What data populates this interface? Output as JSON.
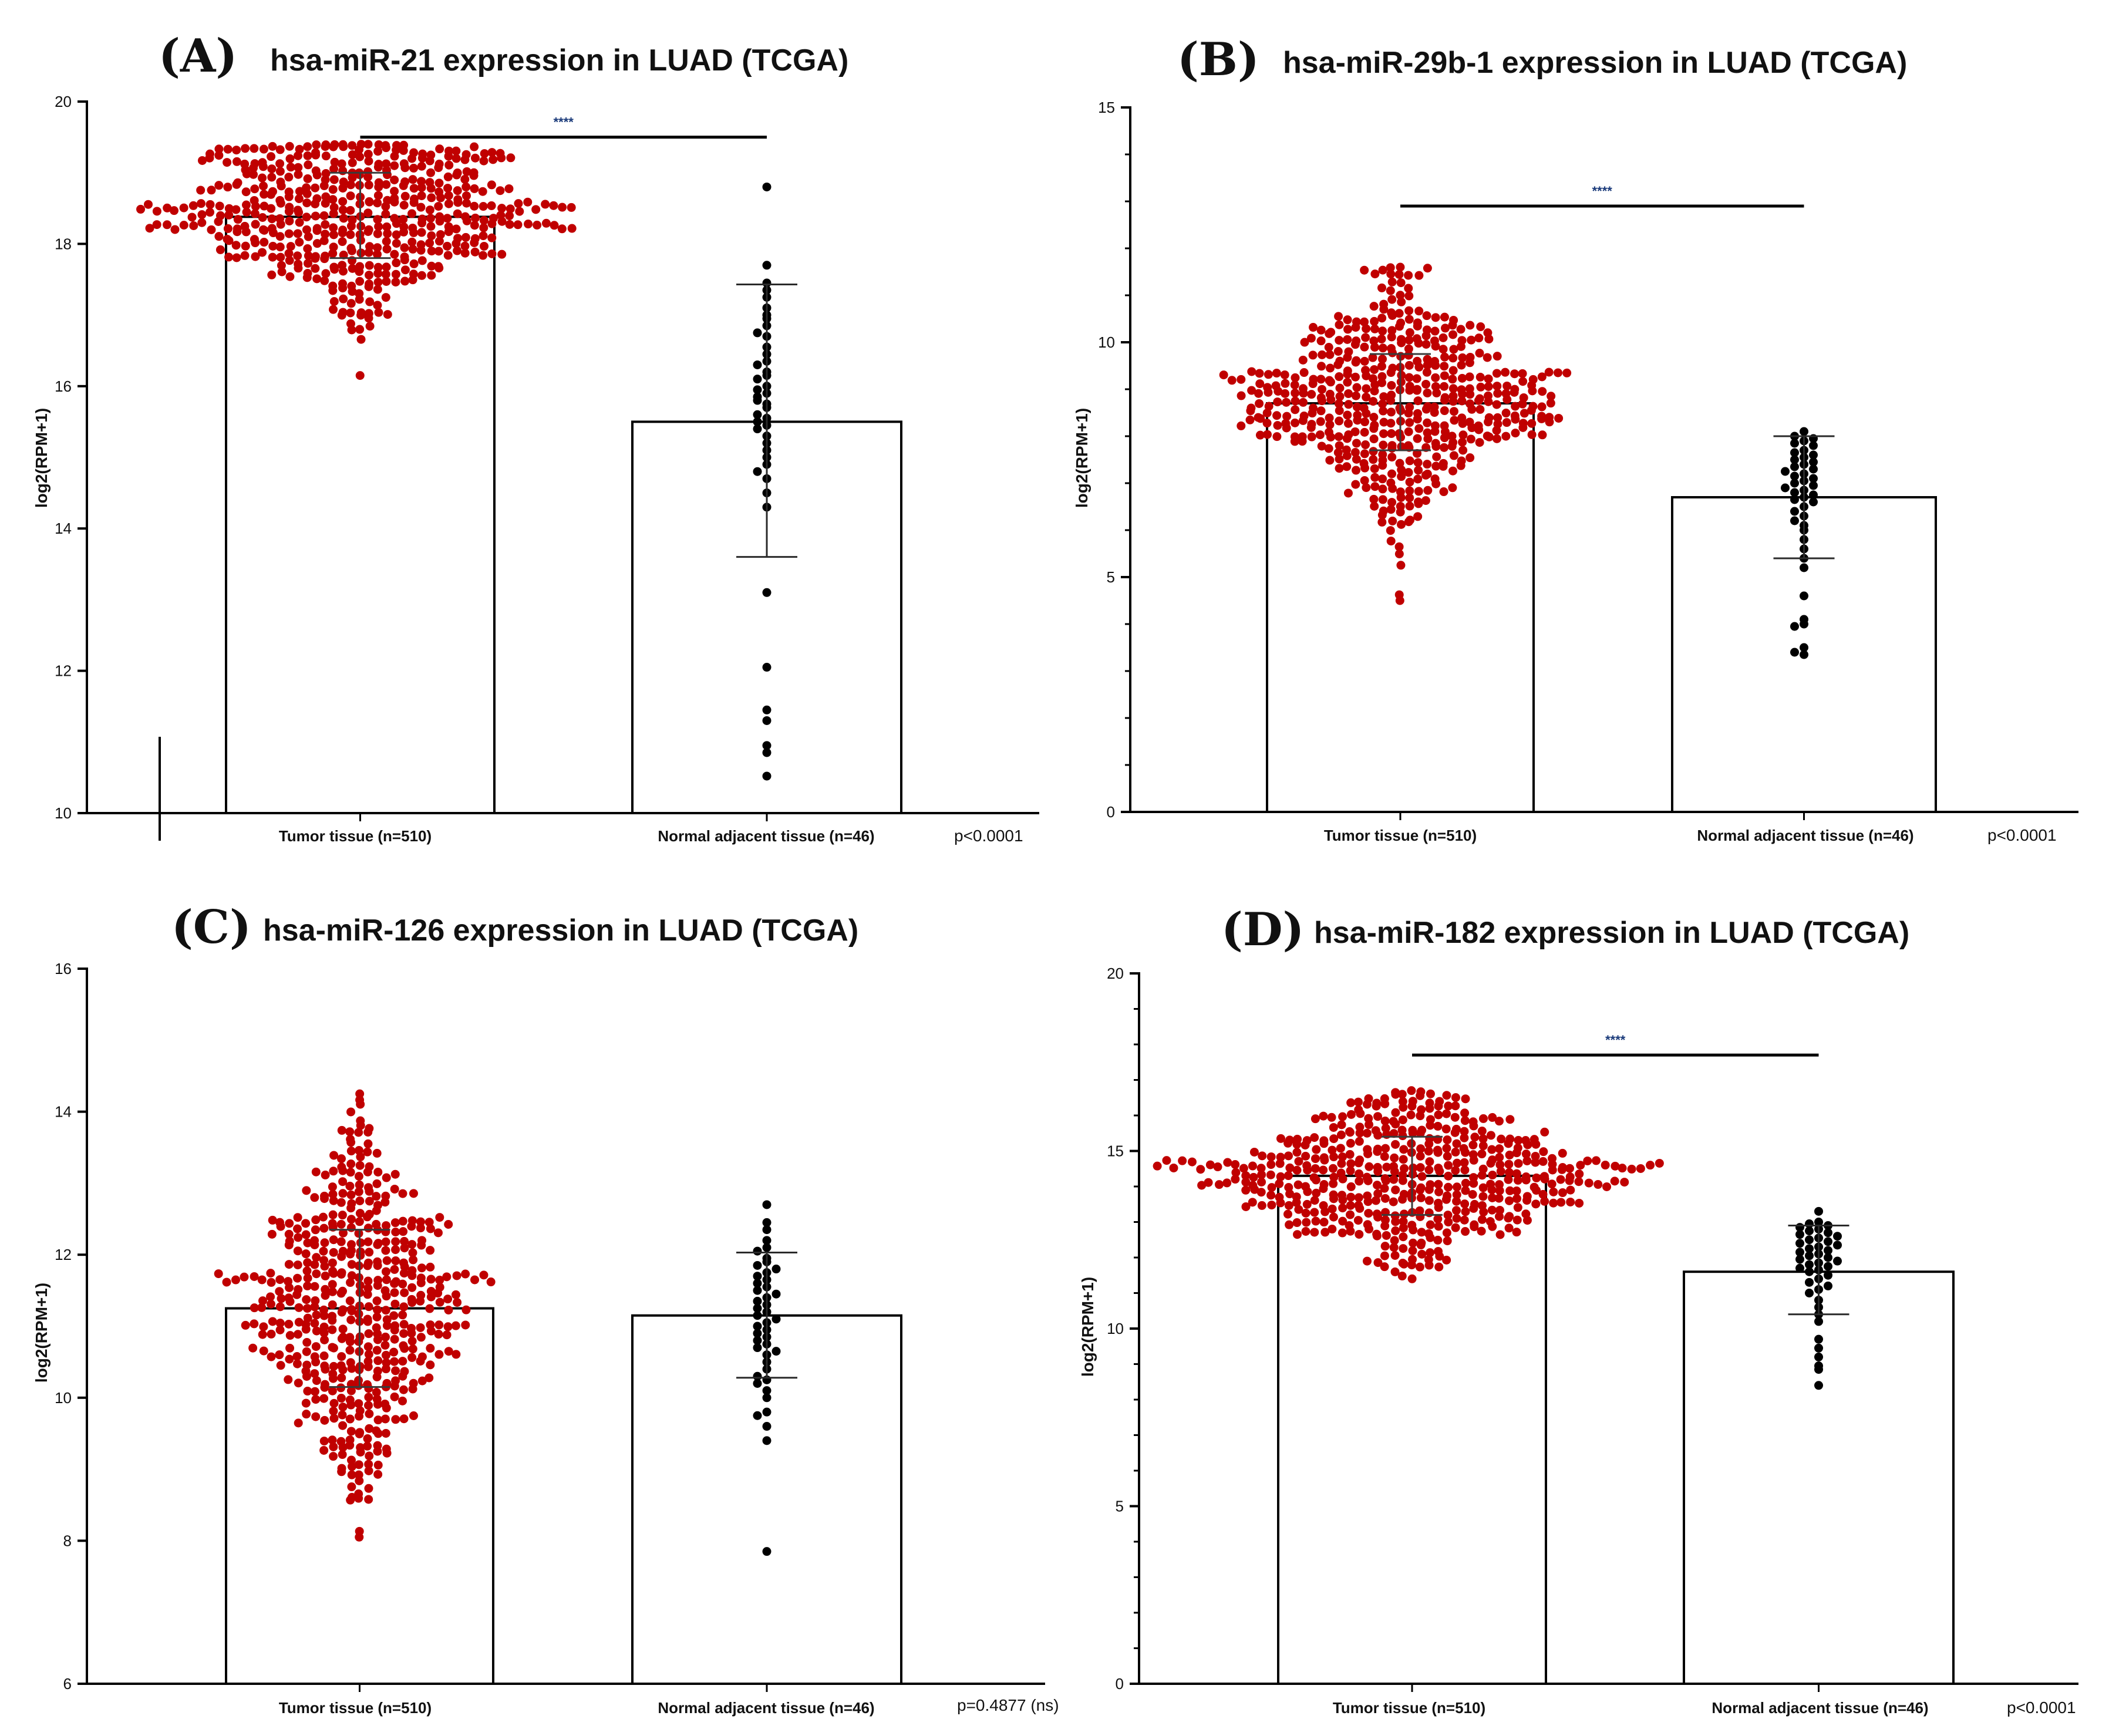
{
  "figure": {
    "colors": {
      "tumor_dots": "#c00000",
      "normal_dots": "#000000",
      "bar_fill": "#ffffff",
      "axis": "#000000",
      "significance_stars": "#1a3a7a"
    }
  },
  "chart_data": [
    {
      "type": "bar",
      "panel_label": "(A)",
      "title": "hsa-miR-21 expression in LUAD (TCGA)",
      "xlabel": "",
      "ylabel": "log2(RPM+1)",
      "ylim": [
        10,
        20
      ],
      "yticks": [
        10,
        12,
        14,
        16,
        18,
        20
      ],
      "yticks_text": [
        "10",
        "12",
        "14",
        "16",
        "18",
        "20"
      ],
      "minor_ticks": 0,
      "categories": [
        "Tumor tissue (n=510)",
        "Normal adjacent tissue (n=46)"
      ],
      "values": [
        18.38,
        15.5
      ],
      "error_low": [
        17.8,
        13.6
      ],
      "error_high": [
        19.0,
        17.43
      ],
      "tumor_points": {
        "n": 510,
        "min": 16.15,
        "max": 19.4,
        "q10": 17.3,
        "q90": 19.0,
        "median": 18.4
      },
      "normal_points": [
        18.8,
        17.7,
        17.45,
        17.35,
        17.25,
        17.1,
        17.0,
        16.95,
        16.85,
        16.75,
        16.7,
        16.55,
        16.45,
        16.35,
        16.2,
        16.15,
        16.1,
        16.0,
        15.95,
        15.9,
        15.85,
        15.75,
        15.7,
        15.6,
        15.55,
        15.5,
        15.45,
        15.4,
        15.3,
        15.2,
        15.1,
        15.0,
        14.9,
        14.8,
        14.7,
        14.5,
        14.3,
        13.1,
        12.05,
        11.45,
        11.3,
        10.95,
        10.85,
        10.52,
        15.8,
        16.3
      ],
      "significance": "****",
      "sig_y": 19.5,
      "p_value_text": "p<0.0001"
    },
    {
      "type": "bar",
      "panel_label": "(B)",
      "title": "hsa-miR-29b-1 expression in LUAD (TCGA)",
      "xlabel": "",
      "ylabel": "log2(RPM+1)",
      "ylim": [
        0,
        15
      ],
      "yticks": [
        0,
        5,
        10,
        15
      ],
      "yticks_text": [
        "0",
        "5",
        "10",
        "15"
      ],
      "minor_ticks": 4,
      "categories": [
        "Tumor tissue (n=510)",
        "Normal adjacent tissue (n=46)"
      ],
      "values": [
        8.7,
        6.7
      ],
      "error_low": [
        7.7,
        5.4
      ],
      "error_high": [
        9.75,
        8.0
      ],
      "tumor_points": {
        "n": 510,
        "min": 4.5,
        "max": 11.6,
        "q10": 7.0,
        "q90": 10.1,
        "median": 8.7
      },
      "normal_points": [
        8.1,
        8.0,
        7.95,
        7.9,
        7.85,
        7.8,
        7.7,
        7.65,
        7.6,
        7.55,
        7.5,
        7.45,
        7.4,
        7.35,
        7.3,
        7.25,
        7.2,
        7.15,
        7.1,
        7.05,
        7.0,
        6.95,
        6.9,
        6.85,
        6.8,
        6.75,
        6.7,
        6.65,
        6.6,
        6.5,
        6.4,
        6.3,
        6.2,
        6.1,
        6.0,
        5.8,
        5.6,
        5.4,
        5.2,
        4.6,
        4.1,
        4.0,
        3.95,
        3.5,
        3.4,
        3.35
      ],
      "significance": "****",
      "sig_y": 12.9,
      "p_value_text": "p<0.0001"
    },
    {
      "type": "bar",
      "panel_label": "(C)",
      "title": "hsa-miR-126 expression in LUAD (TCGA)",
      "xlabel": "",
      "ylabel": "log2(RPM+1)",
      "ylim": [
        6,
        16
      ],
      "yticks": [
        6,
        8,
        10,
        12,
        14,
        16
      ],
      "yticks_text": [
        "6",
        "8",
        "10",
        "12",
        "14",
        "16"
      ],
      "minor_ticks": 0,
      "categories": [
        "Tumor tissue (n=510)",
        "Normal adjacent tissue (n=46)"
      ],
      "values": [
        11.25,
        11.15
      ],
      "error_low": [
        10.15,
        10.28
      ],
      "error_high": [
        12.35,
        12.03
      ],
      "tumor_points": {
        "n": 510,
        "min": 8.05,
        "max": 14.25,
        "q10": 9.8,
        "q90": 12.8,
        "median": 11.2
      },
      "normal_points": [
        12.7,
        12.45,
        12.35,
        12.2,
        12.1,
        12.05,
        11.95,
        11.9,
        11.85,
        11.8,
        11.75,
        11.7,
        11.65,
        11.6,
        11.55,
        11.5,
        11.45,
        11.4,
        11.35,
        11.3,
        11.25,
        11.2,
        11.15,
        11.1,
        11.05,
        11.0,
        10.95,
        10.9,
        10.85,
        10.8,
        10.75,
        10.7,
        10.65,
        10.6,
        10.5,
        10.4,
        10.3,
        10.25,
        10.2,
        10.1,
        10.0,
        9.8,
        9.75,
        9.6,
        9.4,
        7.85
      ],
      "significance": "",
      "sig_y": null,
      "p_value_text": "p=0.4877 (ns)"
    },
    {
      "type": "bar",
      "panel_label": "(D)",
      "title": "hsa-miR-182 expression in LUAD (TCGA)",
      "xlabel": "",
      "ylabel": "log2(RPM+1)",
      "ylim": [
        0,
        20
      ],
      "yticks": [
        0,
        5,
        10,
        15,
        20
      ],
      "yticks_text": [
        "0",
        "5",
        "10",
        "15",
        "20"
      ],
      "minor_ticks": 4,
      "categories": [
        "Tumor tissue (n=510)",
        "Normal adjacent tissue (n=46)"
      ],
      "values": [
        14.3,
        11.6
      ],
      "error_low": [
        13.2,
        10.4
      ],
      "error_high": [
        15.4,
        12.9
      ],
      "tumor_points": {
        "n": 510,
        "min": 11.4,
        "max": 16.7,
        "q10": 13.0,
        "q90": 15.7,
        "median": 14.3
      },
      "normal_points": [
        13.3,
        13.0,
        12.95,
        12.9,
        12.85,
        12.8,
        12.75,
        12.7,
        12.65,
        12.6,
        12.55,
        12.5,
        12.45,
        12.4,
        12.35,
        12.3,
        12.25,
        12.2,
        12.15,
        12.1,
        12.05,
        12.0,
        11.95,
        11.9,
        11.85,
        11.8,
        11.75,
        11.7,
        11.65,
        11.6,
        11.5,
        11.4,
        11.3,
        11.2,
        11.1,
        11.0,
        10.8,
        10.6,
        10.4,
        10.2,
        9.7,
        9.45,
        9.2,
        8.95,
        8.85,
        8.4
      ],
      "significance": "****",
      "sig_y": 17.7,
      "p_value_text": "p<0.0001"
    }
  ]
}
